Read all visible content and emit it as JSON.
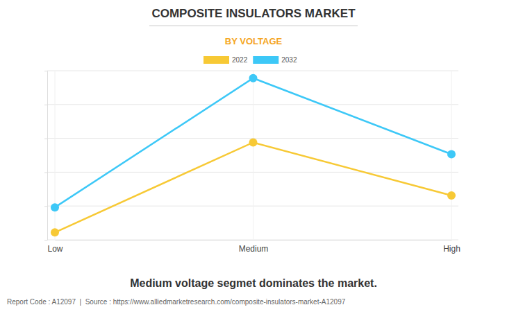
{
  "chart_data": {
    "type": "line",
    "title": "COMPOSITE INSULATORS MARKET",
    "subtitle": "BY VOLTAGE",
    "categories": [
      "Low",
      "Medium",
      "High"
    ],
    "series": [
      {
        "name": "2022",
        "color": "#f7c935",
        "values": [
          0.22,
          2.88,
          1.31
        ],
        "marker": "circle"
      },
      {
        "name": "2032",
        "color": "#3dc8f7",
        "values": [
          0.96,
          4.78,
          2.53
        ],
        "marker": "circle"
      }
    ],
    "ylim": [
      0,
      5
    ],
    "yticks": [
      0,
      1,
      2,
      3,
      4,
      5
    ],
    "grid": true,
    "tick_labels": "x",
    "legend": "top",
    "annotations": [
      "Medium voltage segmet dominates the market.",
      "Report Code : A12097  |  Source : https://www.alliedmarketresearch.com/composite-insulators-market-A12097"
    ]
  }
}
